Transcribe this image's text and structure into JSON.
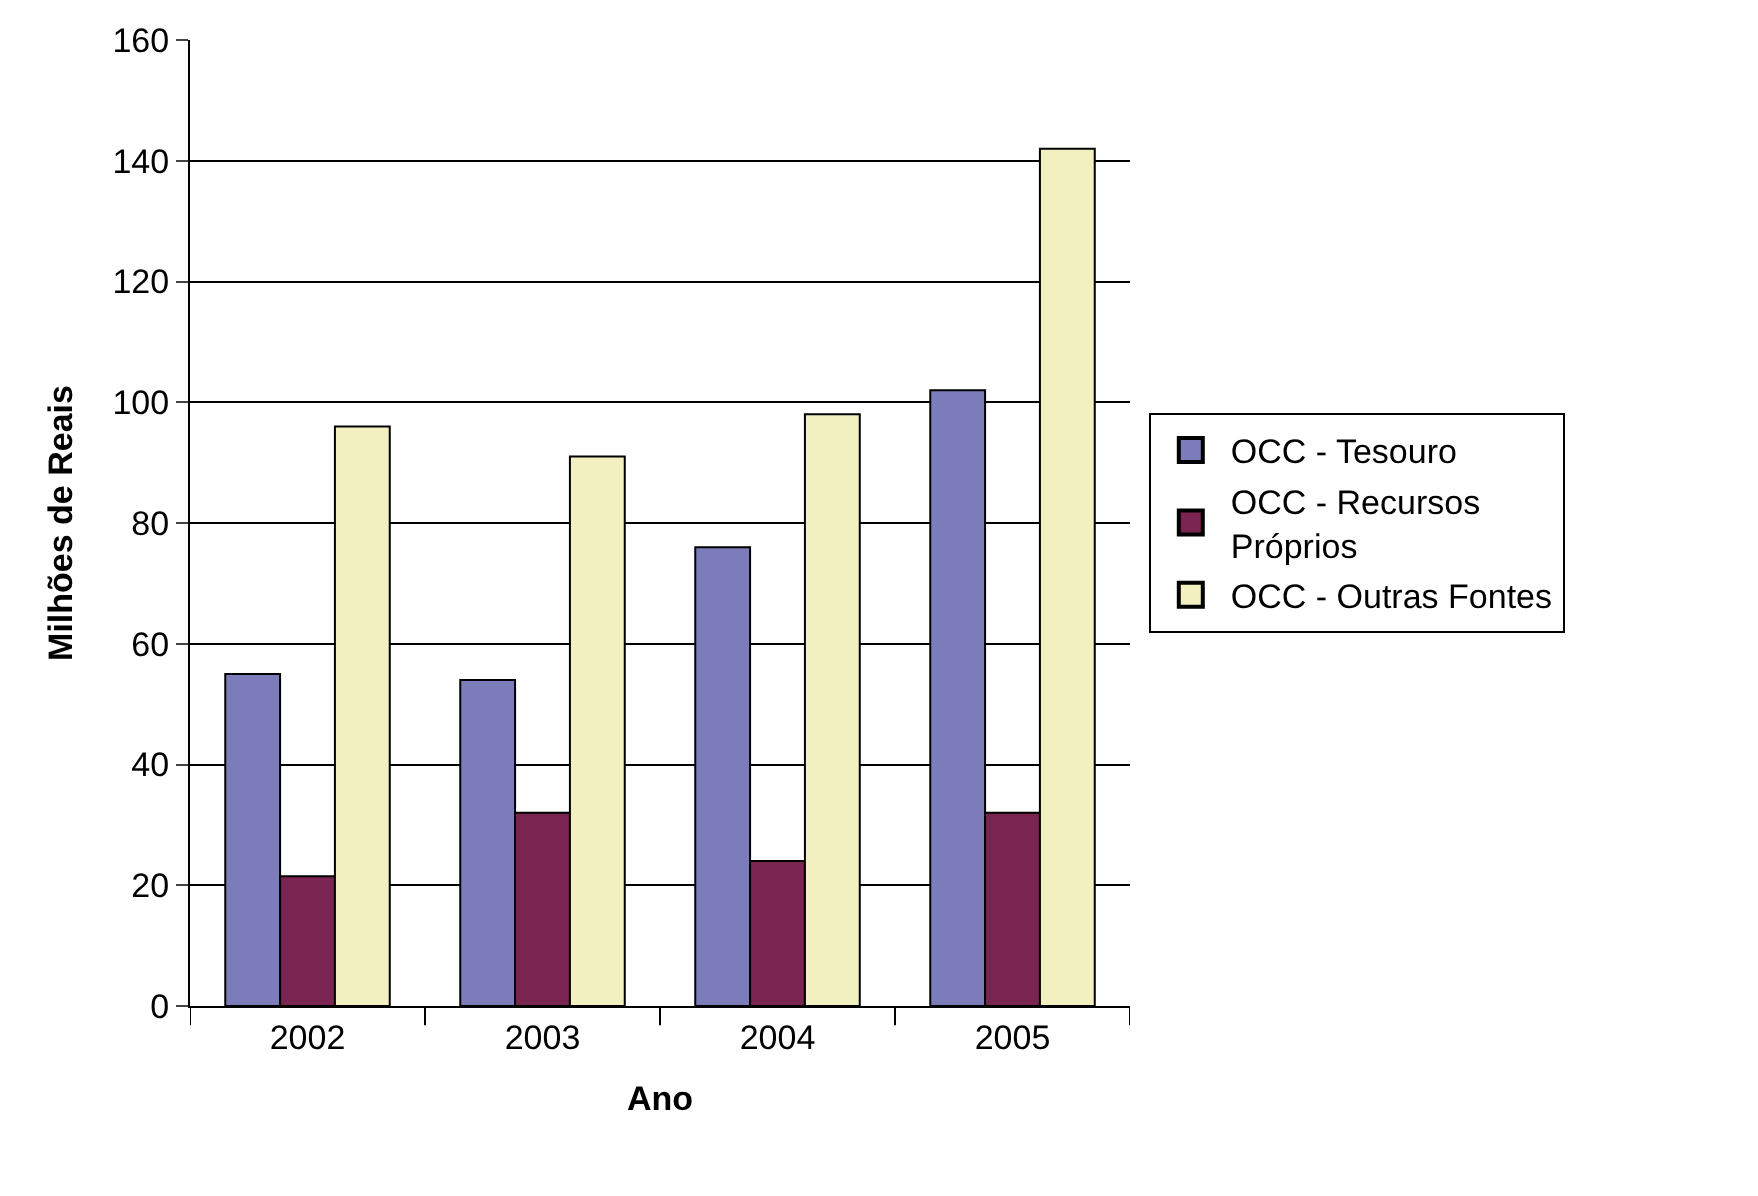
{
  "chart_data": {
    "type": "bar",
    "xlabel": "Ano",
    "ylabel": "Milhões de Reais",
    "categories": [
      "2002",
      "2003",
      "2004",
      "2005"
    ],
    "series": [
      {
        "name": "OCC - Tesouro",
        "color": "#7c7cba",
        "values": [
          55,
          54,
          76,
          102
        ]
      },
      {
        "name": "OCC - Recursos Próprios",
        "color": "#7a2452",
        "values": [
          21.5,
          32,
          24,
          32
        ]
      },
      {
        "name": "OCC - Outras Fontes",
        "color": "#f2f0c0",
        "values": [
          96,
          91,
          98,
          142
        ]
      }
    ],
    "ylim": [
      0,
      160
    ],
    "yticks": [
      0,
      20,
      40,
      60,
      80,
      100,
      120,
      140,
      160
    ],
    "grid": "y",
    "legend": "right"
  }
}
